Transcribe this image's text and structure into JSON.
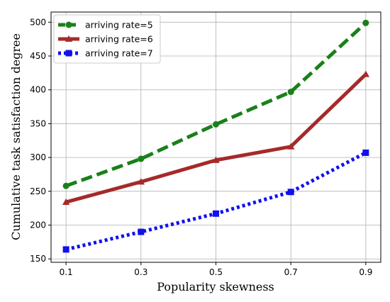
{
  "chart_data": {
    "type": "line",
    "title": "",
    "xlabel": "Popularity skewness",
    "ylabel": "Cumulative task satisfaction degree",
    "x": [
      0.1,
      0.3,
      0.5,
      0.7,
      0.9
    ],
    "x_tick_labels": [
      "0.1",
      "0.3",
      "0.5",
      "0.7",
      "0.9"
    ],
    "xlim": [
      0.06,
      0.94
    ],
    "ylim": [
      145,
      515
    ],
    "y_ticks": [
      150,
      200,
      250,
      300,
      350,
      400,
      450,
      500
    ],
    "grid": true,
    "legend_position": "top-left",
    "series": [
      {
        "name": "arriving rate=5",
        "values": [
          258,
          298,
          349,
          397,
          499
        ],
        "color": "#1a8019",
        "line_style": "dashed",
        "marker": "circle"
      },
      {
        "name": "arriving rate=6",
        "values": [
          234,
          264,
          296,
          316,
          423
        ],
        "color": "#a52a2a",
        "line_style": "solid",
        "marker": "triangle"
      },
      {
        "name": "arriving rate=7",
        "values": [
          164,
          190,
          217,
          249,
          307
        ],
        "color": "#1010f0",
        "line_style": "dotted",
        "marker": "square"
      }
    ]
  }
}
